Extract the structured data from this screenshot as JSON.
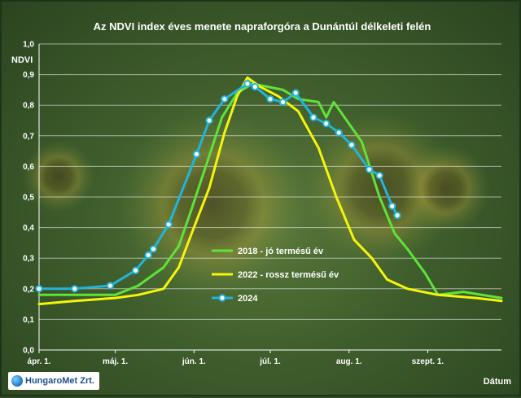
{
  "logo": {
    "text": "HungaroMet Zrt."
  },
  "chart_data": {
    "type": "line",
    "title": "Az NDVI index éves menete napraforgóra a Dunántúl délkeleti felén",
    "ylabel": "NDVI",
    "xlabel": "Dátum",
    "ylim": [
      0,
      1
    ],
    "y_ticks": [
      "0,0",
      "0,1",
      "0,2",
      "0,3",
      "0,4",
      "0,5",
      "0,6",
      "0,7",
      "0,8",
      "0,9",
      "1,0"
    ],
    "x_ticks": [
      {
        "label": "ápr. 1.",
        "x": "04-01"
      },
      {
        "label": "máj. 1.",
        "x": "05-01"
      },
      {
        "label": "jún. 1.",
        "x": "06-01"
      },
      {
        "label": "júl. 1.",
        "x": "07-01"
      },
      {
        "label": "aug. 1.",
        "x": "08-01"
      },
      {
        "label": "szept. 1.",
        "x": "09-01"
      }
    ],
    "xlim": [
      "04-01",
      "09-30"
    ],
    "grid": true,
    "legend_position": "right",
    "series": [
      {
        "name": "2018 - jó termésű év",
        "color": "#5fe23a",
        "marker": "none",
        "points": [
          [
            "04-01",
            0.18
          ],
          [
            "04-15",
            0.18
          ],
          [
            "05-01",
            0.18
          ],
          [
            "05-10",
            0.21
          ],
          [
            "05-20",
            0.27
          ],
          [
            "05-26",
            0.34
          ],
          [
            "05-31",
            0.46
          ],
          [
            "06-06",
            0.61
          ],
          [
            "06-12",
            0.76
          ],
          [
            "06-18",
            0.84
          ],
          [
            "06-24",
            0.87
          ],
          [
            "06-30",
            0.86
          ],
          [
            "07-06",
            0.85
          ],
          [
            "07-12",
            0.82
          ],
          [
            "07-20",
            0.81
          ],
          [
            "07-23",
            0.76
          ],
          [
            "07-26",
            0.81
          ],
          [
            "08-06",
            0.68
          ],
          [
            "08-13",
            0.5
          ],
          [
            "08-19",
            0.38
          ],
          [
            "08-24",
            0.33
          ],
          [
            "08-31",
            0.25
          ],
          [
            "09-05",
            0.18
          ],
          [
            "09-15",
            0.19
          ],
          [
            "09-30",
            0.17
          ]
        ]
      },
      {
        "name": "2022 - rossz termésű év",
        "color": "#f5f50a",
        "marker": "none",
        "points": [
          [
            "04-01",
            0.15
          ],
          [
            "04-15",
            0.16
          ],
          [
            "05-01",
            0.17
          ],
          [
            "05-10",
            0.18
          ],
          [
            "05-20",
            0.2
          ],
          [
            "05-26",
            0.27
          ],
          [
            "05-31",
            0.38
          ],
          [
            "06-07",
            0.53
          ],
          [
            "06-13",
            0.71
          ],
          [
            "06-18",
            0.83
          ],
          [
            "06-22",
            0.89
          ],
          [
            "06-27",
            0.86
          ],
          [
            "07-04",
            0.83
          ],
          [
            "07-12",
            0.78
          ],
          [
            "07-20",
            0.66
          ],
          [
            "07-27",
            0.5
          ],
          [
            "08-03",
            0.36
          ],
          [
            "08-10",
            0.3
          ],
          [
            "08-16",
            0.23
          ],
          [
            "08-24",
            0.2
          ],
          [
            "09-05",
            0.18
          ],
          [
            "09-20",
            0.17
          ],
          [
            "09-30",
            0.16
          ]
        ]
      },
      {
        "name": "2024",
        "color": "#22b4dc",
        "marker": "circle",
        "points": [
          [
            "04-01",
            0.2
          ],
          [
            "04-15",
            0.2
          ],
          [
            "04-29",
            0.21
          ],
          [
            "05-09",
            0.26
          ],
          [
            "05-14",
            0.31
          ],
          [
            "05-16",
            0.33
          ],
          [
            "05-22",
            0.41
          ],
          [
            "06-02",
            0.64
          ],
          [
            "06-07",
            0.75
          ],
          [
            "06-13",
            0.82
          ],
          [
            "06-22",
            0.87
          ],
          [
            "06-25",
            0.86
          ],
          [
            "07-01",
            0.82
          ],
          [
            "07-06",
            0.81
          ],
          [
            "07-11",
            0.84
          ],
          [
            "07-18",
            0.76
          ],
          [
            "07-23",
            0.74
          ],
          [
            "07-28",
            0.71
          ],
          [
            "08-02",
            0.67
          ],
          [
            "08-09",
            0.59
          ],
          [
            "08-13",
            0.57
          ],
          [
            "08-18",
            0.47
          ],
          [
            "08-20",
            0.44
          ]
        ]
      }
    ]
  }
}
